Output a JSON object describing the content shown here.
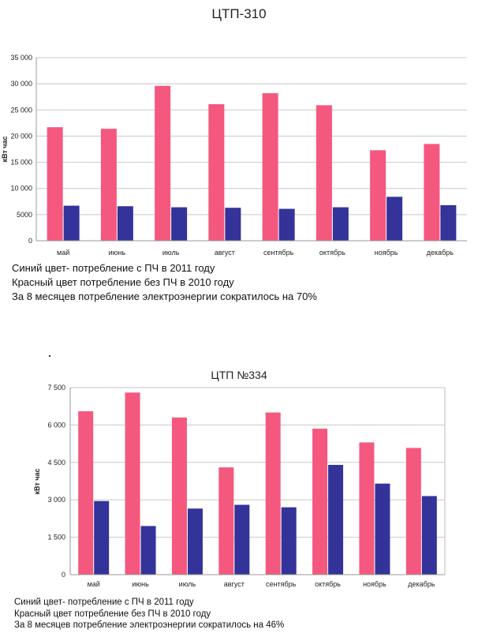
{
  "chart_data": [
    {
      "type": "bar",
      "title": "ЦТП-310",
      "ylabel": "кВт час",
      "ylim": [
        0,
        35000
      ],
      "yticks": [
        "0",
        "5000",
        "10 000",
        "15 000",
        "20 000",
        "25 000",
        "30 000",
        "35 000"
      ],
      "ytick_values": [
        0,
        5000,
        10000,
        15000,
        20000,
        25000,
        30000,
        35000
      ],
      "categories": [
        "май",
        "июнь",
        "июль",
        "август",
        "сентябрь",
        "октябрь",
        "ноябрь",
        "декабрь"
      ],
      "series": [
        {
          "color": "#f4587e",
          "values": [
            21700,
            21400,
            29600,
            26100,
            28200,
            25900,
            17300,
            18500
          ]
        },
        {
          "color": "#333399",
          "values": [
            6700,
            6600,
            6400,
            6300,
            6100,
            6400,
            8400,
            6800
          ]
        }
      ],
      "notes": [
        "Синий цвет- потребление с ПЧ в 2011 году",
        "Красный цвет потребление без ПЧ в 2010 году",
        "За 8 месяцев потребление электроэнергии сократилось на 70%"
      ]
    },
    {
      "type": "bar",
      "title": "ЦТП №334",
      "ylabel": "кВт час",
      "ylim": [
        0,
        7500
      ],
      "yticks": [
        "0",
        "1 500",
        "3 000",
        "4 500",
        "6 000",
        "7 500"
      ],
      "ytick_values": [
        0,
        1500,
        3000,
        4500,
        6000,
        7500
      ],
      "categories": [
        "май",
        "июнь",
        "июль",
        "август",
        "сентябрь",
        "октябрь",
        "ноябрь",
        "декабрь"
      ],
      "series": [
        {
          "color": "#f4587e",
          "values": [
            6550,
            7300,
            6300,
            4300,
            6500,
            5850,
            5300,
            5080
          ]
        },
        {
          "color": "#333399",
          "values": [
            2950,
            1950,
            2650,
            2800,
            2700,
            4400,
            3650,
            3150
          ]
        }
      ],
      "notes": [
        "Синий цвет- потребление с ПЧ в 2011 году",
        "Красный цвет потребление без ПЧ в 2010 году",
        "За 8 месяцев потребление электроэнергии сократилось на 46%"
      ]
    }
  ]
}
